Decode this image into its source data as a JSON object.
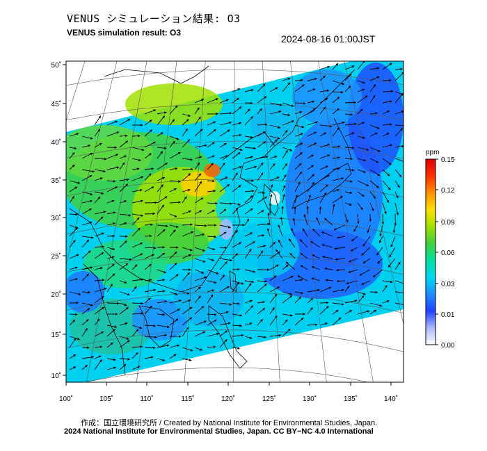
{
  "title_jp": "VENUS シミュレーション結果: O3",
  "title_en": "VENUS simulation result: O3",
  "timestamp": "2024-08-16 01:00JST",
  "map": {
    "lat_labels": [
      "50˚",
      "45˚",
      "40˚",
      "35˚",
      "30˚",
      "25˚",
      "20˚",
      "15˚",
      "10˚"
    ],
    "lon_labels": [
      "100˚",
      "105˚",
      "110˚",
      "115˚",
      "120˚",
      "125˚",
      "130˚",
      "135˚",
      "140˚"
    ]
  },
  "colorbar": {
    "unit": "ppm",
    "ticks": [
      "0.15",
      "0.12",
      "0.09",
      "0.06",
      "0.03",
      "0.01",
      "0.00"
    ],
    "colors": [
      "#ffffff",
      "#a8b8ff",
      "#2040ff",
      "#1e90ff",
      "#00d8f0",
      "#00e0a0",
      "#40d040",
      "#a0e000",
      "#ffe000",
      "#ff9000",
      "#ff3000",
      "#e00000"
    ]
  },
  "credits": {
    "line1": "作成：国立環境研究所 / Created by National Institute for Environmental Studies, Japan.",
    "line2": "2024 National Institute for Environmental Studies, Japan. CC BY−NC 4.0 International"
  }
}
